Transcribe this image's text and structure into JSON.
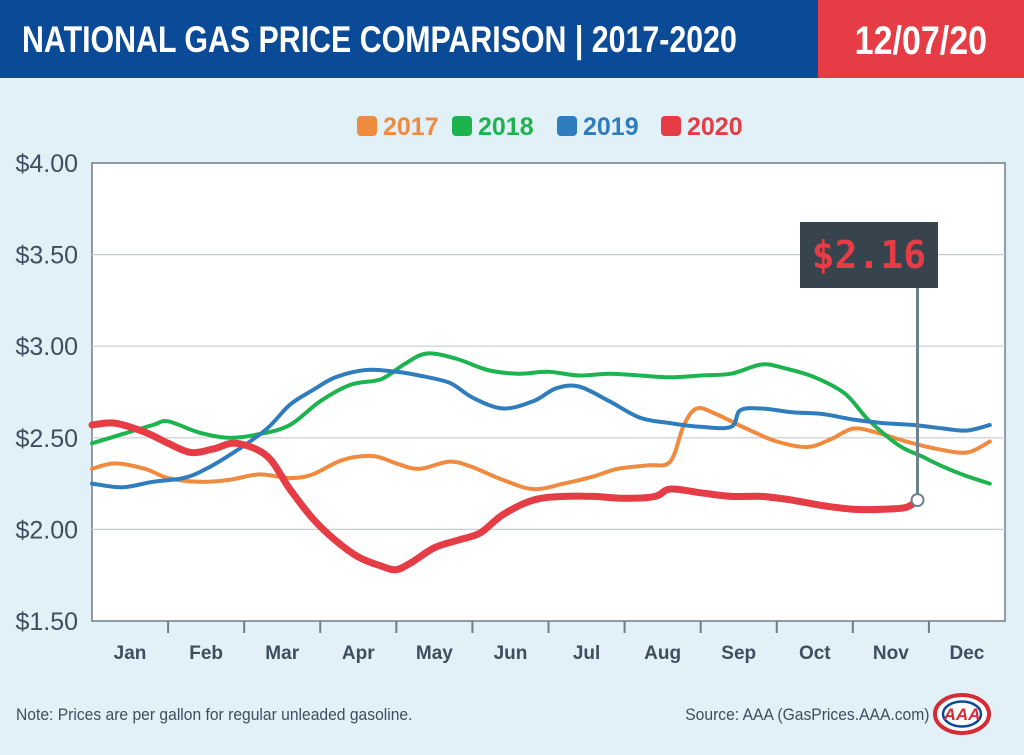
{
  "header": {
    "title": "NATIONAL GAS PRICE COMPARISON | 2017-2020",
    "date": "12/07/20"
  },
  "colors": {
    "header_blue": "#0b4a96",
    "date_red": "#e53c45",
    "panel_bg": "#e2f0f7",
    "2017": "#ef8a3f",
    "2018": "#1db34e",
    "2019": "#2f7dbd",
    "2020": "#e53c45"
  },
  "callout": {
    "label": "$2.16"
  },
  "footer": {
    "note": "Note: Prices are per gallon for regular unleaded gasoline.",
    "source": "Source: AAA (GasPrices.AAA.com)"
  },
  "logo": {
    "icon": "aaa-logo",
    "text": "AAA"
  },
  "chart_data": {
    "type": "line",
    "title": "",
    "xlabel": "",
    "ylabel": "",
    "categories": [
      "Jan",
      "Feb",
      "Mar",
      "Apr",
      "May",
      "Jun",
      "Jul",
      "Aug",
      "Sep",
      "Oct",
      "Nov",
      "Dec"
    ],
    "y_ticks": [
      "$1.50",
      "$2.00",
      "$2.50",
      "$3.00",
      "$3.50",
      "$4.00"
    ],
    "ylim": [
      1.5,
      4.0
    ],
    "xlim": [
      0,
      12
    ],
    "grid": true,
    "legend_position": "top-center",
    "series": [
      {
        "name": "2017",
        "points": [
          [
            0,
            2.33
          ],
          [
            0.3,
            2.36
          ],
          [
            0.7,
            2.33
          ],
          [
            1.0,
            2.28
          ],
          [
            1.4,
            2.26
          ],
          [
            1.8,
            2.27
          ],
          [
            2.2,
            2.3
          ],
          [
            2.6,
            2.28
          ],
          [
            2.9,
            2.3
          ],
          [
            3.3,
            2.38
          ],
          [
            3.7,
            2.4
          ],
          [
            4.0,
            2.36
          ],
          [
            4.3,
            2.33
          ],
          [
            4.7,
            2.37
          ],
          [
            5.0,
            2.34
          ],
          [
            5.4,
            2.27
          ],
          [
            5.8,
            2.22
          ],
          [
            6.2,
            2.25
          ],
          [
            6.6,
            2.29
          ],
          [
            6.9,
            2.33
          ],
          [
            7.3,
            2.35
          ],
          [
            7.6,
            2.37
          ],
          [
            7.78,
            2.57
          ],
          [
            7.95,
            2.66
          ],
          [
            8.2,
            2.63
          ],
          [
            8.6,
            2.55
          ],
          [
            9.0,
            2.48
          ],
          [
            9.4,
            2.45
          ],
          [
            9.7,
            2.49
          ],
          [
            10.0,
            2.55
          ],
          [
            10.3,
            2.53
          ],
          [
            10.7,
            2.48
          ],
          [
            11.1,
            2.44
          ],
          [
            11.5,
            2.42
          ],
          [
            11.8,
            2.48
          ]
        ]
      },
      {
        "name": "2018",
        "points": [
          [
            0,
            2.47
          ],
          [
            0.4,
            2.52
          ],
          [
            0.8,
            2.57
          ],
          [
            1.0,
            2.59
          ],
          [
            1.4,
            2.53
          ],
          [
            1.8,
            2.5
          ],
          [
            2.2,
            2.52
          ],
          [
            2.6,
            2.57
          ],
          [
            3.0,
            2.7
          ],
          [
            3.4,
            2.79
          ],
          [
            3.8,
            2.82
          ],
          [
            4.1,
            2.9
          ],
          [
            4.4,
            2.96
          ],
          [
            4.8,
            2.93
          ],
          [
            5.2,
            2.87
          ],
          [
            5.6,
            2.85
          ],
          [
            6.0,
            2.86
          ],
          [
            6.4,
            2.84
          ],
          [
            6.8,
            2.85
          ],
          [
            7.2,
            2.84
          ],
          [
            7.6,
            2.83
          ],
          [
            8.0,
            2.84
          ],
          [
            8.4,
            2.85
          ],
          [
            8.8,
            2.9
          ],
          [
            9.1,
            2.88
          ],
          [
            9.5,
            2.83
          ],
          [
            9.9,
            2.74
          ],
          [
            10.2,
            2.6
          ],
          [
            10.6,
            2.46
          ],
          [
            10.9,
            2.4
          ],
          [
            11.2,
            2.34
          ],
          [
            11.5,
            2.29
          ],
          [
            11.8,
            2.25
          ]
        ]
      },
      {
        "name": "2019",
        "points": [
          [
            0,
            2.25
          ],
          [
            0.4,
            2.23
          ],
          [
            0.8,
            2.26
          ],
          [
            1.2,
            2.28
          ],
          [
            1.5,
            2.33
          ],
          [
            1.9,
            2.43
          ],
          [
            2.3,
            2.55
          ],
          [
            2.6,
            2.68
          ],
          [
            2.9,
            2.76
          ],
          [
            3.2,
            2.83
          ],
          [
            3.6,
            2.87
          ],
          [
            4.0,
            2.86
          ],
          [
            4.3,
            2.84
          ],
          [
            4.7,
            2.8
          ],
          [
            5.0,
            2.72
          ],
          [
            5.4,
            2.66
          ],
          [
            5.8,
            2.7
          ],
          [
            6.1,
            2.77
          ],
          [
            6.4,
            2.78
          ],
          [
            6.8,
            2.7
          ],
          [
            7.2,
            2.61
          ],
          [
            7.6,
            2.58
          ],
          [
            8.0,
            2.56
          ],
          [
            8.4,
            2.56
          ],
          [
            8.52,
            2.65
          ],
          [
            8.8,
            2.66
          ],
          [
            9.2,
            2.64
          ],
          [
            9.6,
            2.63
          ],
          [
            10.0,
            2.6
          ],
          [
            10.4,
            2.58
          ],
          [
            10.8,
            2.57
          ],
          [
            11.2,
            2.55
          ],
          [
            11.5,
            2.54
          ],
          [
            11.8,
            2.57
          ]
        ]
      },
      {
        "name": "2020",
        "points": [
          [
            0,
            2.57
          ],
          [
            0.3,
            2.58
          ],
          [
            0.7,
            2.53
          ],
          [
            1.0,
            2.47
          ],
          [
            1.3,
            2.42
          ],
          [
            1.6,
            2.44
          ],
          [
            1.9,
            2.47
          ],
          [
            2.3,
            2.4
          ],
          [
            2.6,
            2.22
          ],
          [
            2.9,
            2.06
          ],
          [
            3.2,
            1.94
          ],
          [
            3.5,
            1.85
          ],
          [
            3.8,
            1.8
          ],
          [
            4.0,
            1.78
          ],
          [
            4.2,
            1.82
          ],
          [
            4.5,
            1.9
          ],
          [
            4.8,
            1.94
          ],
          [
            5.1,
            1.98
          ],
          [
            5.4,
            2.08
          ],
          [
            5.8,
            2.16
          ],
          [
            6.2,
            2.18
          ],
          [
            6.6,
            2.18
          ],
          [
            7.0,
            2.17
          ],
          [
            7.4,
            2.18
          ],
          [
            7.6,
            2.22
          ],
          [
            8.0,
            2.2
          ],
          [
            8.4,
            2.18
          ],
          [
            8.8,
            2.18
          ],
          [
            9.2,
            2.16
          ],
          [
            9.6,
            2.13
          ],
          [
            10.0,
            2.11
          ],
          [
            10.4,
            2.11
          ],
          [
            10.7,
            2.12
          ],
          [
            10.85,
            2.16
          ]
        ]
      }
    ],
    "callout_point": [
      10.85,
      2.16
    ]
  }
}
